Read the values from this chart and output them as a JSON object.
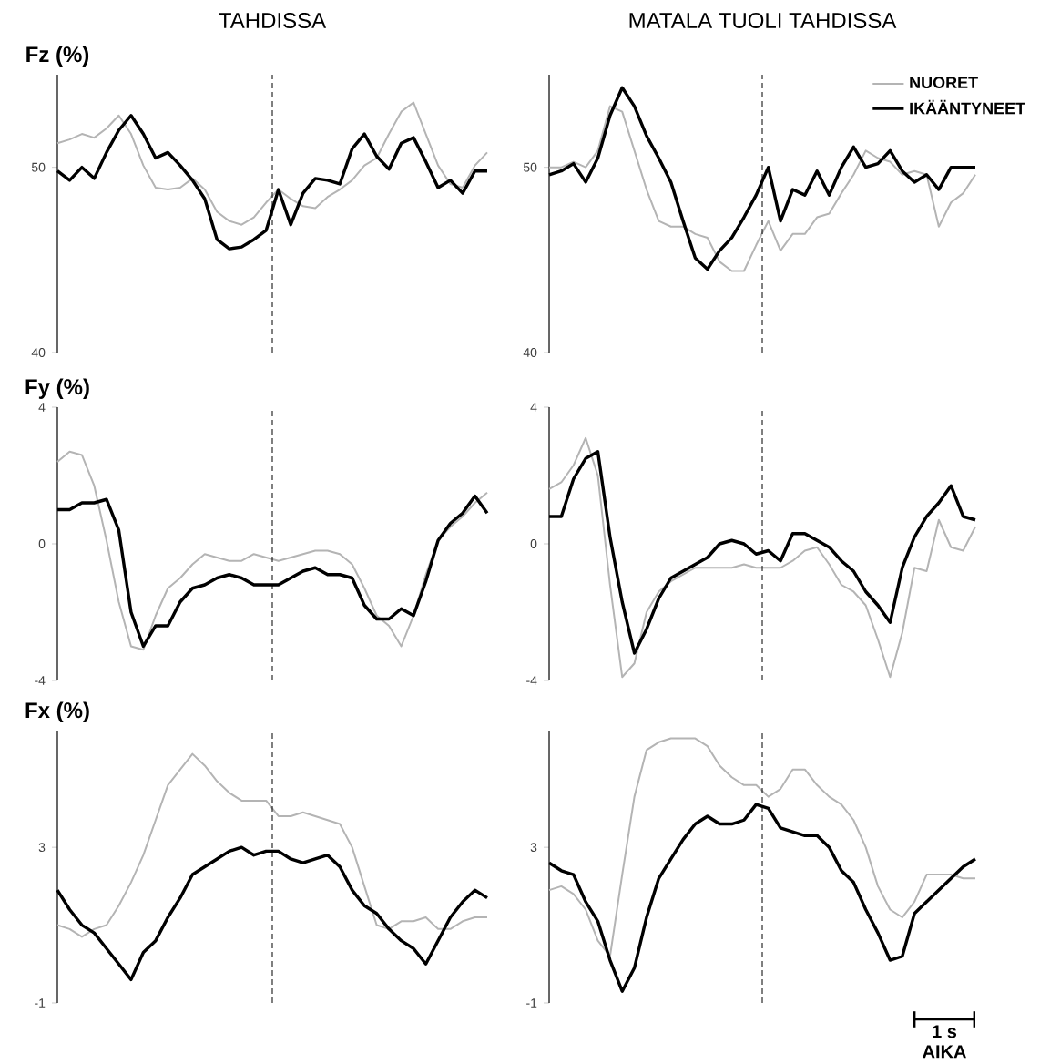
{
  "chart_data": [
    {
      "type": "line",
      "title": "TAHDISSA",
      "ylabel": "Fz (%)",
      "ylim": [
        40,
        55
      ],
      "yticks": [
        40,
        50
      ],
      "tick_labels": "y",
      "categories": [
        null,
        null,
        null,
        null,
        null,
        null,
        null,
        null,
        null,
        null,
        null,
        null,
        null,
        null,
        null,
        null,
        null,
        null,
        null,
        null,
        null,
        null,
        null,
        null,
        null,
        null,
        null,
        null,
        null,
        null,
        null,
        null,
        null,
        null,
        null,
        null
      ],
      "series": [
        {
          "color": "#b4b4b4",
          "values": [
            51.3,
            51.5,
            51.8,
            51.6,
            52.1,
            52.8,
            51.8,
            50.1,
            48.9,
            48.8,
            48.9,
            49.4,
            48.8,
            47.6,
            47.1,
            46.9,
            47.3,
            48.1,
            48.8,
            48.3,
            47.9,
            47.8,
            48.4,
            48.8,
            49.3,
            50.1,
            50.5,
            51.8,
            53,
            53.5,
            51.8,
            50.1,
            49.1,
            48.9,
            50.1,
            50.8
          ]
        },
        {
          "color": "#000000",
          "values": [
            49.8,
            49.3,
            50,
            49.4,
            50.8,
            52,
            52.8,
            51.8,
            50.5,
            50.8,
            50.1,
            49.3,
            48.3,
            46.1,
            45.6,
            45.7,
            46.1,
            46.6,
            48.8,
            46.9,
            48.6,
            49.4,
            49.3,
            49.1,
            51,
            51.8,
            50.6,
            49.9,
            51.3,
            51.6,
            50.3,
            48.9,
            49.3,
            48.6,
            49.8,
            49.8
          ]
        }
      ]
    },
    {
      "type": "line",
      "title": "MATALA TUOLI TAHDISSA",
      "ylim": [
        40,
        55
      ],
      "yticks": [
        40,
        50
      ],
      "tick_labels": "y",
      "legend": "top right",
      "categories": [
        null,
        null,
        null,
        null,
        null,
        null,
        null,
        null,
        null,
        null,
        null,
        null,
        null,
        null,
        null,
        null,
        null,
        null,
        null,
        null,
        null,
        null,
        null,
        null,
        null,
        null,
        null,
        null,
        null,
        null,
        null,
        null,
        null,
        null,
        null,
        null
      ],
      "series": [
        {
          "name": "NUORET",
          "color": "#b4b4b4",
          "values": [
            50,
            50,
            50.3,
            50,
            50.9,
            53.3,
            53,
            50.9,
            48.8,
            47.1,
            46.8,
            46.8,
            46.4,
            46.2,
            44.9,
            44.4,
            44.4,
            45.8,
            47.1,
            45.5,
            46.4,
            46.4,
            47.3,
            47.5,
            48.6,
            49.6,
            50.9,
            50.5,
            50.3,
            49.6,
            49.8,
            49.6,
            46.8,
            48.1,
            48.6,
            49.6
          ]
        },
        {
          "name": "IKÄÄNTYNEET",
          "color": "#000000",
          "values": [
            49.6,
            49.8,
            50.2,
            49.2,
            50.5,
            52.8,
            54.3,
            53.3,
            51.7,
            50.5,
            49.2,
            47.1,
            45.1,
            44.5,
            45.5,
            46.2,
            47.3,
            48.5,
            50,
            47.1,
            48.8,
            48.5,
            49.8,
            48.5,
            50,
            51.1,
            50,
            50.2,
            50.9,
            49.8,
            49.2,
            49.6,
            48.8,
            50,
            50,
            50
          ]
        }
      ]
    },
    {
      "type": "line",
      "ylabel": "Fy (%)",
      "ylim": [
        -4,
        4
      ],
      "yticks": [
        -4,
        0,
        4
      ],
      "tick_labels": "y",
      "categories": [
        null,
        null,
        null,
        null,
        null,
        null,
        null,
        null,
        null,
        null,
        null,
        null,
        null,
        null,
        null,
        null,
        null,
        null,
        null,
        null,
        null,
        null,
        null,
        null,
        null,
        null,
        null,
        null,
        null,
        null,
        null,
        null,
        null,
        null,
        null,
        null
      ],
      "series": [
        {
          "color": "#b4b4b4",
          "values": [
            2.4,
            2.7,
            2.6,
            1.7,
            0.1,
            -1.7,
            -3.0,
            -3.1,
            -2.1,
            -1.3,
            -1.0,
            -0.6,
            -0.3,
            -0.4,
            -0.5,
            -0.5,
            -0.3,
            -0.4,
            -0.5,
            -0.4,
            -0.3,
            -0.2,
            -0.2,
            -0.3,
            -0.6,
            -1.3,
            -2.1,
            -2.4,
            -3.0,
            -2.1,
            -0.9,
            0.1,
            0.5,
            0.8,
            1.2,
            1.5
          ]
        },
        {
          "color": "#000000",
          "values": [
            1.0,
            1.0,
            1.2,
            1.2,
            1.3,
            0.4,
            -2.0,
            -3.0,
            -2.4,
            -2.4,
            -1.7,
            -1.3,
            -1.2,
            -1.0,
            -0.9,
            -1.0,
            -1.2,
            -1.2,
            -1.2,
            -1.0,
            -0.8,
            -0.7,
            -0.9,
            -0.9,
            -1.0,
            -1.8,
            -2.2,
            -2.2,
            -1.9,
            -2.1,
            -1.1,
            0.1,
            0.6,
            0.9,
            1.4,
            0.9
          ]
        }
      ]
    },
    {
      "type": "line",
      "ylim": [
        -4,
        4
      ],
      "yticks": [
        -4,
        0,
        4
      ],
      "tick_labels": "y",
      "categories": [
        null,
        null,
        null,
        null,
        null,
        null,
        null,
        null,
        null,
        null,
        null,
        null,
        null,
        null,
        null,
        null,
        null,
        null,
        null,
        null,
        null,
        null,
        null,
        null,
        null,
        null,
        null,
        null,
        null,
        null,
        null,
        null,
        null,
        null,
        null,
        null
      ],
      "series": [
        {
          "color": "#b4b4b4",
          "values": [
            1.6,
            1.8,
            2.3,
            3.1,
            2.0,
            -1.2,
            -3.9,
            -3.5,
            -2.0,
            -1.4,
            -1.1,
            -0.9,
            -0.7,
            -0.7,
            -0.7,
            -0.7,
            -0.6,
            -0.7,
            -0.7,
            -0.7,
            -0.5,
            -0.2,
            -0.1,
            -0.6,
            -1.2,
            -1.4,
            -1.8,
            -2.8,
            -3.9,
            -2.6,
            -0.7,
            -0.8,
            0.7,
            -0.1,
            -0.2,
            0.5
          ]
        },
        {
          "color": "#000000",
          "values": [
            0.8,
            0.8,
            1.9,
            2.5,
            2.7,
            0.2,
            -1.7,
            -3.2,
            -2.5,
            -1.6,
            -1.0,
            -0.8,
            -0.6,
            -0.4,
            0.0,
            0.1,
            0.0,
            -0.3,
            -0.2,
            -0.5,
            0.3,
            0.3,
            0.1,
            -0.1,
            -0.5,
            -0.8,
            -1.4,
            -1.8,
            -2.3,
            -0.7,
            0.2,
            0.8,
            1.2,
            1.7,
            0.8,
            0.7
          ]
        }
      ]
    },
    {
      "type": "line",
      "ylabel": "Fx (%)",
      "ylim": [
        -1,
        6
      ],
      "yticks": [
        -1,
        3
      ],
      "tick_labels": "y",
      "categories": [
        null,
        null,
        null,
        null,
        null,
        null,
        null,
        null,
        null,
        null,
        null,
        null,
        null,
        null,
        null,
        null,
        null,
        null,
        null,
        null,
        null,
        null,
        null,
        null,
        null,
        null,
        null,
        null,
        null,
        null,
        null,
        null,
        null,
        null,
        null,
        null
      ],
      "series": [
        {
          "color": "#b4b4b4",
          "values": [
            1.0,
            0.9,
            0.7,
            0.9,
            1.0,
            1.5,
            2.1,
            2.8,
            3.7,
            4.6,
            5.0,
            5.4,
            5.1,
            4.7,
            4.4,
            4.2,
            4.2,
            4.2,
            3.8,
            3.8,
            3.9,
            3.8,
            3.7,
            3.6,
            3.0,
            2.0,
            1.0,
            0.9,
            1.1,
            1.1,
            1.2,
            0.9,
            0.9,
            1.1,
            1.2,
            1.2
          ]
        },
        {
          "color": "#000000",
          "values": [
            1.9,
            1.4,
            1.0,
            0.8,
            0.4,
            0.0,
            -0.4,
            0.3,
            0.6,
            1.2,
            1.7,
            2.3,
            2.5,
            2.7,
            2.9,
            3.0,
            2.8,
            2.9,
            2.9,
            2.7,
            2.6,
            2.7,
            2.8,
            2.5,
            1.9,
            1.5,
            1.3,
            0.9,
            0.6,
            0.4,
            0.0,
            0.6,
            1.2,
            1.6,
            1.9,
            1.7
          ]
        }
      ]
    },
    {
      "type": "line",
      "xlabel": "AIKA",
      "annotations": [
        "1 s"
      ],
      "ylim": [
        -1,
        6
      ],
      "yticks": [
        -1,
        3
      ],
      "tick_labels": "y",
      "categories": [
        null,
        null,
        null,
        null,
        null,
        null,
        null,
        null,
        null,
        null,
        null,
        null,
        null,
        null,
        null,
        null,
        null,
        null,
        null,
        null,
        null,
        null,
        null,
        null,
        null,
        null,
        null,
        null,
        null,
        null,
        null,
        null,
        null,
        null,
        null,
        null
      ],
      "series": [
        {
          "color": "#b4b4b4",
          "values": [
            1.9,
            2.0,
            1.8,
            1.4,
            0.6,
            0.2,
            2.3,
            4.3,
            5.5,
            5.7,
            5.8,
            5.8,
            5.8,
            5.6,
            5.1,
            4.8,
            4.6,
            4.6,
            4.3,
            4.5,
            5.0,
            5.0,
            4.6,
            4.3,
            4.1,
            3.7,
            3.0,
            2.0,
            1.4,
            1.2,
            1.6,
            2.3,
            2.3,
            2.3,
            2.2,
            2.2
          ]
        },
        {
          "color": "#000000",
          "values": [
            2.6,
            2.4,
            2.3,
            1.6,
            1.1,
            0.1,
            -0.7,
            -0.1,
            1.2,
            2.2,
            2.7,
            3.2,
            3.6,
            3.8,
            3.6,
            3.6,
            3.7,
            4.1,
            4.0,
            3.5,
            3.4,
            3.3,
            3.3,
            3.0,
            2.4,
            2.1,
            1.4,
            0.8,
            0.1,
            0.2,
            1.3,
            1.6,
            1.9,
            2.2,
            2.5,
            2.7
          ]
        }
      ]
    }
  ]
}
